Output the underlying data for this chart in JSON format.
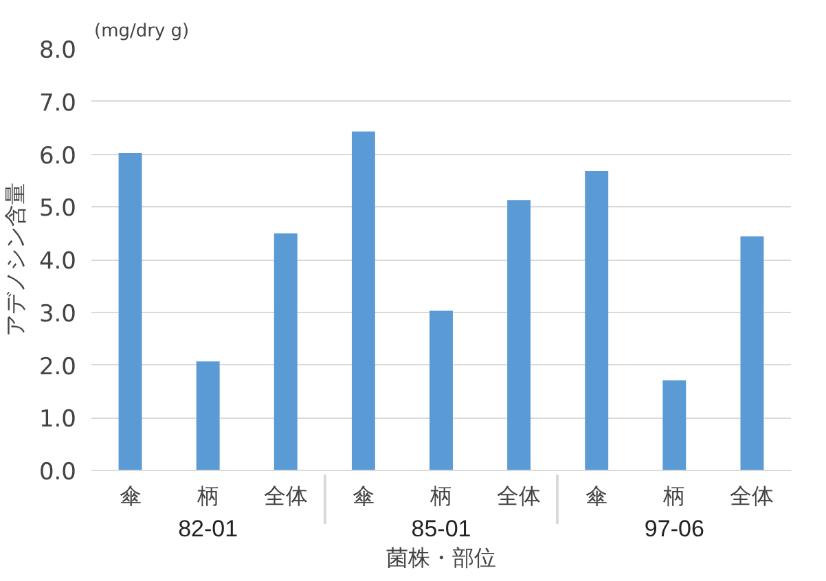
{
  "chart_data": {
    "type": "bar",
    "ylabel": "アデノシン含量",
    "xlabel": "菌株・部位",
    "categories": [
      "傘",
      "柄",
      "全体",
      "傘",
      "柄",
      "全体",
      "傘",
      "柄",
      "全体"
    ],
    "values": [
      6.02,
      2.07,
      4.5,
      6.43,
      3.03,
      5.13,
      5.68,
      1.71,
      4.44
    ],
    "color": "#5b9bd5",
    "annotations": [
      "(mg/dry g)",
      "82-01",
      "85-01",
      "97-06"
    ],
    "ylim": [
      0,
      8
    ],
    "yticks": [
      {
        "value": 0,
        "label": "0.0"
      },
      {
        "value": 1,
        "label": "1.0"
      },
      {
        "value": 2,
        "label": "2.0"
      },
      {
        "value": 3,
        "label": "3.0"
      },
      {
        "value": 4,
        "label": "4.0"
      },
      {
        "value": 5,
        "label": "5.0"
      },
      {
        "value": 6,
        "label": "6.0"
      },
      {
        "value": 7,
        "label": "7.0"
      },
      {
        "value": 8,
        "label": "8.0"
      }
    ],
    "grid": "y"
  }
}
